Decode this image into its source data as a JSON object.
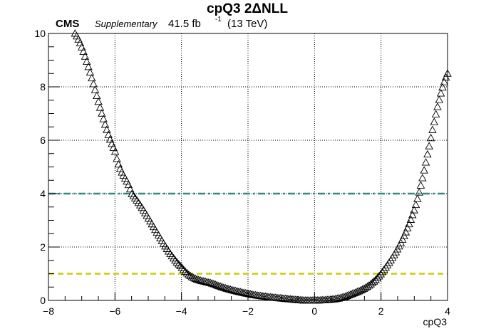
{
  "chart_data": {
    "type": "scatter",
    "title": "cpQ3 2ΔNLL",
    "experiment": "CMS",
    "subtitle": "Supplementary",
    "lumi": "41.5 fb",
    "lumi_exp": "-1",
    "energy": "(13 TeV)",
    "xlabel": "cpQ3",
    "ylabel": "",
    "xlim": [
      -8,
      4
    ],
    "ylim": [
      0,
      10
    ],
    "xticks": [
      -8,
      -6,
      -4,
      -2,
      0,
      2,
      4
    ],
    "yticks": [
      0,
      2,
      4,
      6,
      8,
      10
    ],
    "grid": true,
    "marker": "open-triangle",
    "curve": {
      "x_min": -7.2,
      "x_max": 4.0,
      "n_points": 224,
      "anchor_points": [
        {
          "x": -7.2,
          "y": 10.0
        },
        {
          "x": -6.0,
          "y": 5.6
        },
        {
          "x": -5.5,
          "y": 4.0
        },
        {
          "x": -4.0,
          "y": 1.25
        },
        {
          "x": -3.0,
          "y": 0.6
        },
        {
          "x": -2.0,
          "y": 0.25
        },
        {
          "x": -1.0,
          "y": 0.08
        },
        {
          "x": 0.0,
          "y": 0.0
        },
        {
          "x": 1.0,
          "y": 0.18
        },
        {
          "x": 2.0,
          "y": 1.0
        },
        {
          "x": 3.0,
          "y": 3.4
        },
        {
          "x": 4.0,
          "y": 8.5
        }
      ]
    },
    "reference_lines": [
      {
        "y": 4.0,
        "color": "#2e8b8b",
        "style": "dash-dot"
      },
      {
        "y": 1.0,
        "color": "#cccc00",
        "style": "dashed"
      }
    ]
  }
}
